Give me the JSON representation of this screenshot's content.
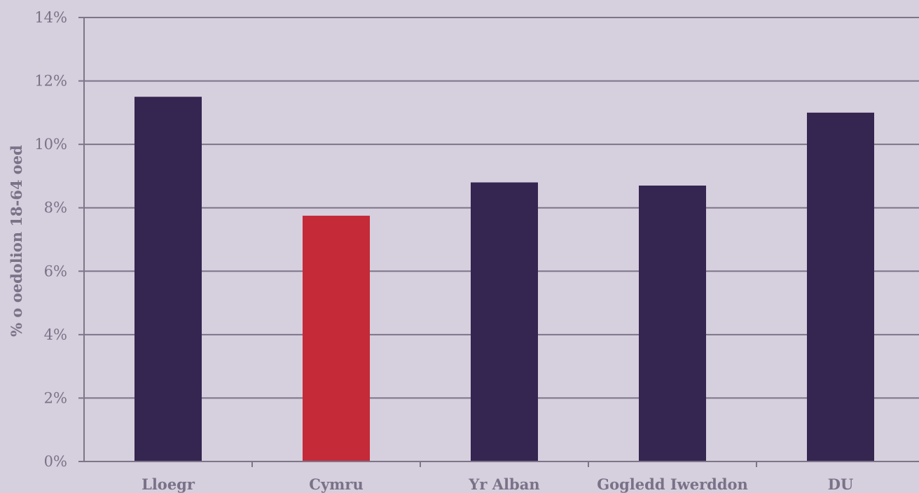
{
  "chart_data": {
    "type": "bar",
    "title": "",
    "xlabel": "",
    "ylabel": "% o oedolion 18-64 oed",
    "categories": [
      "Lloegr",
      "Cymru",
      "Yr Alban",
      "Gogledd Iwerddon",
      "DU"
    ],
    "values": [
      11.5,
      7.75,
      8.8,
      8.7,
      11.0
    ],
    "ylim": [
      0,
      14
    ],
    "yticks": [
      0,
      2,
      4,
      6,
      8,
      10,
      12,
      14
    ],
    "ytick_labels": [
      "0%",
      "2%",
      "4%",
      "6%",
      "8%",
      "10%",
      "12%",
      "14%"
    ],
    "grid": true,
    "colors": {
      "background": "#d6cfdd",
      "bar_default": "#352551",
      "bar_highlight": "#c52a38",
      "grid": "#7d7589",
      "text": "#7a7288"
    },
    "highlight_category": "Cymru"
  }
}
